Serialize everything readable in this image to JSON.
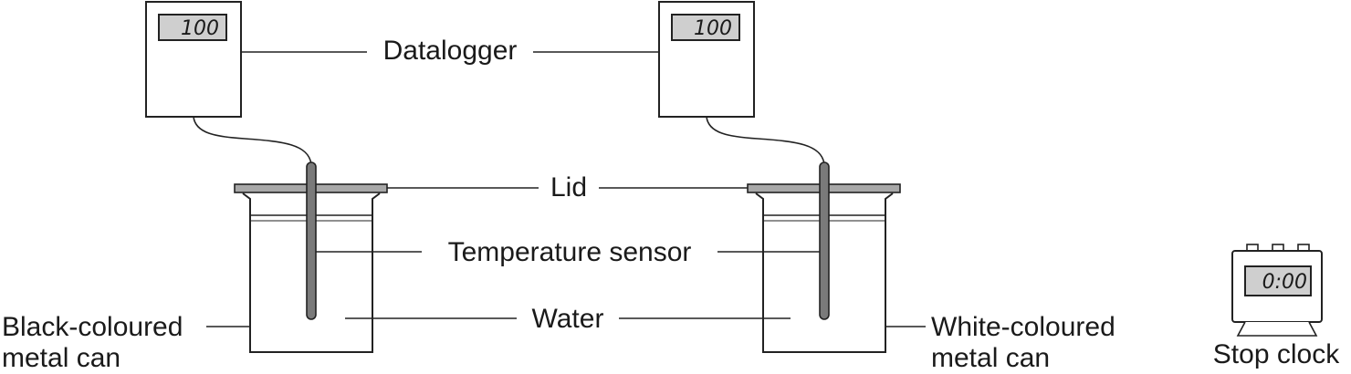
{
  "datalogger_left": {
    "reading": "100"
  },
  "datalogger_right": {
    "reading": "100"
  },
  "labels": {
    "datalogger": "Datalogger",
    "lid": "Lid",
    "temperature_sensor": "Temperature sensor",
    "water": "Water",
    "black_can_line1": "Black-coloured",
    "black_can_line2": "metal can",
    "white_can_line1": "White-coloured",
    "white_can_line2": "metal can",
    "stop_clock": "Stop clock"
  },
  "stop_clock": {
    "reading": "0:00"
  }
}
